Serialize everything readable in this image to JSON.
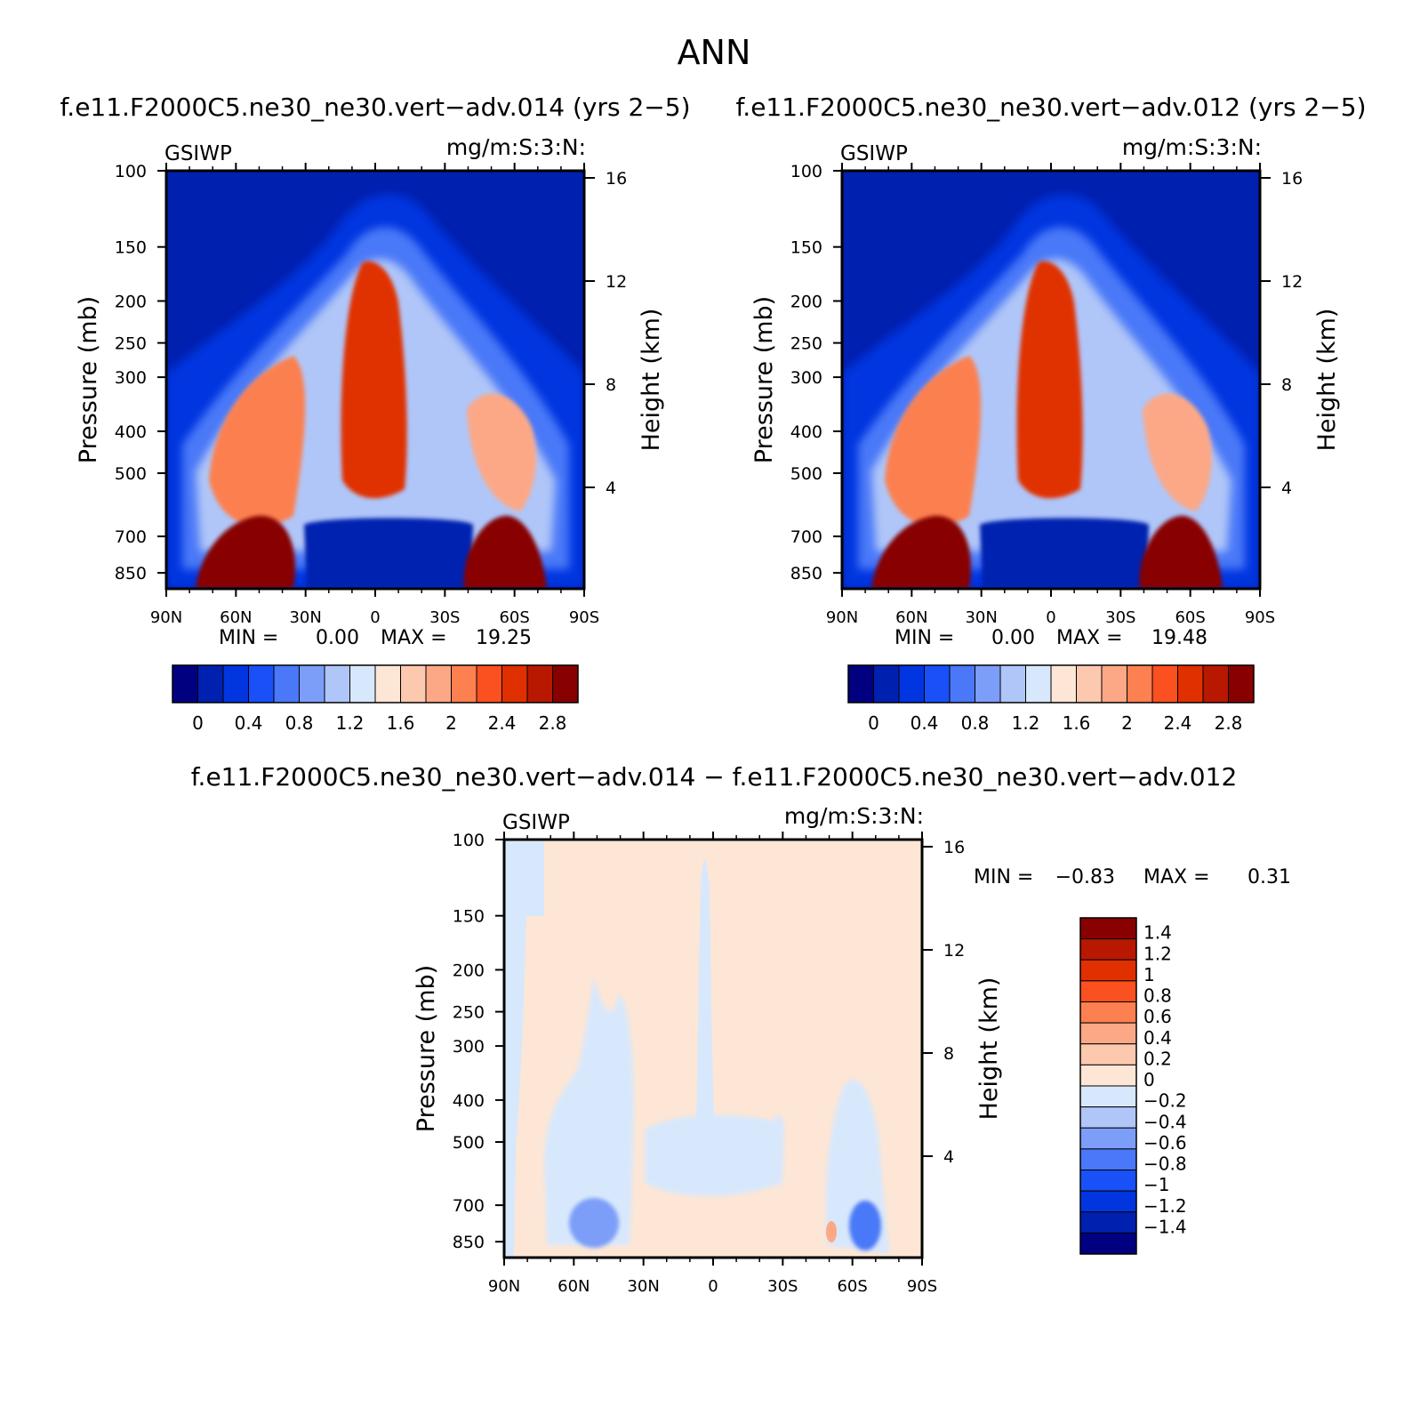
{
  "figure": {
    "season": "ANN",
    "diff_title": "f.e11.F2000C5.ne30_ne30.vert−adv.014 − f.e11.F2000C5.ne30_ne30.vert−adv.012"
  },
  "chart_data": [
    {
      "type": "heatmap",
      "title": "f.e11.F2000C5.ne30_ne30.vert−adv.014 (yrs 2−5)",
      "variable": "GSIWP",
      "units": "mg/m:S:3:N:",
      "ylabel": "Pressure (mb)",
      "ylabel_right": "Height (km)",
      "x_ticks": [
        "90N",
        "60N",
        "30N",
        "0",
        "30S",
        "60S",
        "90S"
      ],
      "y_ticks": [
        "100",
        "150",
        "200",
        "250",
        "300",
        "400",
        "500",
        "700",
        "850"
      ],
      "y_ticks_right": [
        "16",
        "12",
        "8",
        "4"
      ],
      "min_label": "MIN =",
      "min_value": "0.00",
      "max_label": "MAX =",
      "max_value": "19.25",
      "colorbar_labels": [
        "0",
        "0.4",
        "0.8",
        "1.2",
        "1.6",
        "2",
        "2.4",
        "2.8"
      ],
      "colors": [
        "#000080",
        "#0020b0",
        "#0035e0",
        "#1a50f8",
        "#4a78f8",
        "#7c9ef8",
        "#b0c6f8",
        "#d8e8fc",
        "#fde6d5",
        "#fcc8ae",
        "#fca886",
        "#fc8050",
        "#fb5020",
        "#e03000",
        "#b81800",
        "#880000"
      ]
    },
    {
      "type": "heatmap",
      "title": "f.e11.F2000C5.ne30_ne30.vert−adv.012 (yrs 2−5)",
      "variable": "GSIWP",
      "units": "mg/m:S:3:N:",
      "ylabel": "Pressure (mb)",
      "ylabel_right": "Height (km)",
      "x_ticks": [
        "90N",
        "60N",
        "30N",
        "0",
        "30S",
        "60S",
        "90S"
      ],
      "y_ticks": [
        "100",
        "150",
        "200",
        "250",
        "300",
        "400",
        "500",
        "700",
        "850"
      ],
      "y_ticks_right": [
        "16",
        "12",
        "8",
        "4"
      ],
      "min_label": "MIN =",
      "min_value": "0.00",
      "max_label": "MAX =",
      "max_value": "19.48",
      "colorbar_labels": [
        "0",
        "0.4",
        "0.8",
        "1.2",
        "1.6",
        "2",
        "2.4",
        "2.8"
      ],
      "colors": [
        "#000080",
        "#0020b0",
        "#0035e0",
        "#1a50f8",
        "#4a78f8",
        "#7c9ef8",
        "#b0c6f8",
        "#d8e8fc",
        "#fde6d5",
        "#fcc8ae",
        "#fca886",
        "#fc8050",
        "#fb5020",
        "#e03000",
        "#b81800",
        "#880000"
      ]
    },
    {
      "type": "heatmap",
      "title": "",
      "variable": "GSIWP",
      "units": "mg/m:S:3:N:",
      "ylabel": "Pressure (mb)",
      "ylabel_right": "Height (km)",
      "x_ticks": [
        "90N",
        "60N",
        "30N",
        "0",
        "30S",
        "60S",
        "90S"
      ],
      "y_ticks": [
        "100",
        "150",
        "200",
        "250",
        "300",
        "400",
        "500",
        "700",
        "850"
      ],
      "y_ticks_right": [
        "16",
        "12",
        "8",
        "4"
      ],
      "min_label": "MIN =",
      "min_value": "−0.83",
      "max_label": "MAX =",
      "max_value": "0.31",
      "colorbar_labels": [
        "1.4",
        "1.2",
        "1",
        "0.8",
        "0.6",
        "0.4",
        "0.2",
        "0",
        "−0.2",
        "−0.4",
        "−0.6",
        "−0.8",
        "−1",
        "−1.2",
        "−1.4"
      ],
      "colors": [
        "#000080",
        "#0020b0",
        "#0035e0",
        "#1a50f8",
        "#4a78f8",
        "#7c9ef8",
        "#b0c6f8",
        "#d8e8fc",
        "#fde6d5",
        "#fcc8ae",
        "#fca886",
        "#fc8050",
        "#fb5020",
        "#e03000",
        "#b81800",
        "#880000"
      ]
    }
  ]
}
